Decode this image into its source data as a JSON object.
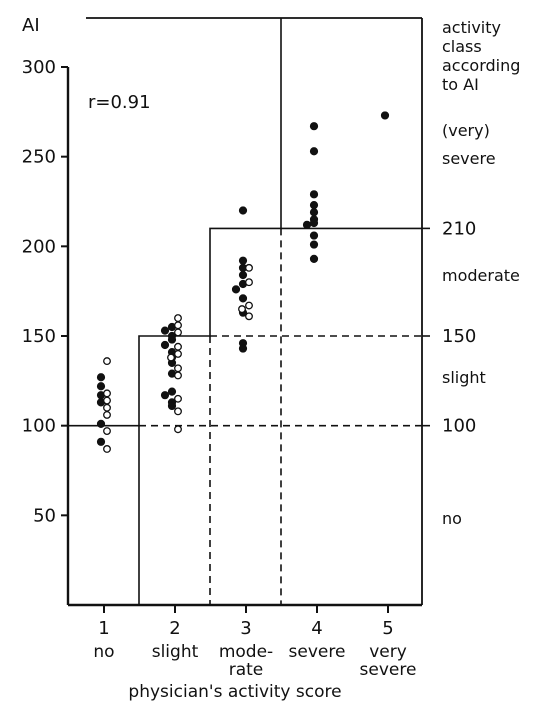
{
  "chart_data": {
    "type": "scatter",
    "ylabel": "AI",
    "xlabel": "physician's activity score",
    "annotation": "r=0.91",
    "ylim": [
      0,
      320
    ],
    "yticks": [
      50,
      100,
      150,
      200,
      250,
      300
    ],
    "x_categories": [
      {
        "num": "1",
        "label": [
          "no"
        ]
      },
      {
        "num": "2",
        "label": [
          "slight"
        ]
      },
      {
        "num": "3",
        "label": [
          "mode-",
          "rate"
        ]
      },
      {
        "num": "4",
        "label": [
          "severe"
        ]
      },
      {
        "num": "5",
        "label": [
          "very",
          "severe"
        ]
      }
    ],
    "right_axis": {
      "title": [
        "activity",
        "class",
        "according",
        "to AI"
      ],
      "values": [
        "210",
        "150",
        "100"
      ],
      "classes": [
        [
          "(very)",
          "severe"
        ],
        [
          "moderate"
        ],
        [
          "slight"
        ],
        [
          "no"
        ]
      ]
    },
    "class_thresholds": [
      100,
      150,
      210
    ],
    "series": [
      {
        "marker": "filled",
        "points": [
          [
            1,
            127
          ],
          [
            1,
            122
          ],
          [
            1,
            117
          ],
          [
            1,
            113
          ],
          [
            1,
            101
          ],
          [
            1,
            91
          ],
          [
            2,
            155
          ],
          [
            2,
            153
          ],
          [
            2,
            150
          ],
          [
            2,
            148
          ],
          [
            2,
            145
          ],
          [
            2,
            141
          ],
          [
            2,
            138
          ],
          [
            2,
            135
          ],
          [
            2,
            129
          ],
          [
            2,
            119
          ],
          [
            2,
            117
          ],
          [
            2,
            113
          ],
          [
            2,
            111
          ],
          [
            3,
            220
          ],
          [
            3,
            192
          ],
          [
            3,
            188
          ],
          [
            3,
            184
          ],
          [
            3,
            179
          ],
          [
            3,
            176
          ],
          [
            3,
            171
          ],
          [
            3,
            163
          ],
          [
            3,
            146
          ],
          [
            3,
            143
          ],
          [
            4,
            267
          ],
          [
            4,
            253
          ],
          [
            4,
            229
          ],
          [
            4,
            223
          ],
          [
            4,
            219
          ],
          [
            4,
            215
          ],
          [
            4,
            213
          ],
          [
            4,
            212
          ],
          [
            4,
            206
          ],
          [
            4,
            201
          ],
          [
            4,
            193
          ],
          [
            5,
            273
          ]
        ]
      },
      {
        "marker": "open",
        "points": [
          [
            1,
            136
          ],
          [
            1,
            118
          ],
          [
            1,
            114
          ],
          [
            1,
            110
          ],
          [
            1,
            106
          ],
          [
            1,
            97
          ],
          [
            1,
            87
          ],
          [
            2,
            160
          ],
          [
            2,
            156
          ],
          [
            2,
            152
          ],
          [
            2,
            144
          ],
          [
            2,
            140
          ],
          [
            2,
            138
          ],
          [
            2,
            132
          ],
          [
            2,
            128
          ],
          [
            2,
            115
          ],
          [
            2,
            108
          ],
          [
            2,
            98
          ],
          [
            3,
            188
          ],
          [
            3,
            180
          ],
          [
            3,
            167
          ],
          [
            3,
            165
          ],
          [
            3,
            161
          ]
        ]
      }
    ]
  }
}
